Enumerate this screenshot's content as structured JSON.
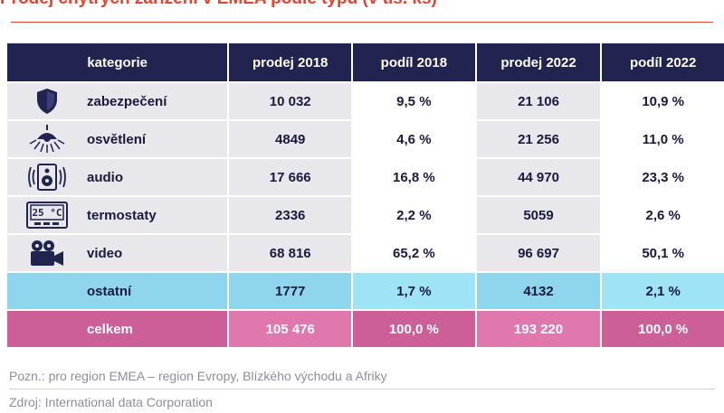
{
  "title": "Prodej chytrých zařízení v EMEA podle typu (v tis. ks)",
  "chart_data": {
    "type": "table",
    "columns": [
      "kategorie",
      "prodej 2018",
      "podíl 2018",
      "prodej 2022",
      "podíl 2022"
    ],
    "rows": [
      {
        "category": "zabezpečení",
        "icon": "shield-icon",
        "prodej_2018": "10 032",
        "podil_2018": "9,5 %",
        "prodej_2022": "21 106",
        "podil_2022": "10,9 %"
      },
      {
        "category": "osvětlení",
        "icon": "ceiling-lamp-icon",
        "prodej_2018": "4849",
        "podil_2018": "4,6 %",
        "prodej_2022": "21 256",
        "podil_2022": "11,0 %"
      },
      {
        "category": "audio",
        "icon": "speaker-icon",
        "prodej_2018": "17 666",
        "podil_2018": "16,8 %",
        "prodej_2022": "44 970",
        "podil_2022": "23,3 %"
      },
      {
        "category": "termostaty",
        "icon": "thermostat-icon",
        "thermostat_display": "25 °C",
        "prodej_2018": "2336",
        "podil_2018": "2,2 %",
        "prodej_2022": "5059",
        "podil_2022": "2,6 %"
      },
      {
        "category": "video",
        "icon": "video-camera-icon",
        "prodej_2018": "68 816",
        "podil_2018": "65,2 %",
        "prodej_2022": "96 697",
        "podil_2022": "50,1 %"
      },
      {
        "category": "ostatní",
        "icon": "",
        "prodej_2018": "1777",
        "podil_2018": "1,7 %",
        "prodej_2022": "4132",
        "podil_2022": "2,1 %"
      },
      {
        "category": "celkem",
        "icon": "",
        "prodej_2018": "105 476",
        "podil_2018": "100,0 %",
        "prodej_2022": "193 220",
        "podil_2022": "100,0 %"
      }
    ]
  },
  "notes": {
    "note": "Pozn.: pro region EMEA – region Evropy, Blízkého východu a Afriky",
    "source": "Zdroj: International data Corporation"
  },
  "colors": {
    "header": "#20244f",
    "row_light": "#e7e7ec",
    "other": "#8fd5ed",
    "total": "#cc5e98",
    "title": "#e8412c"
  }
}
